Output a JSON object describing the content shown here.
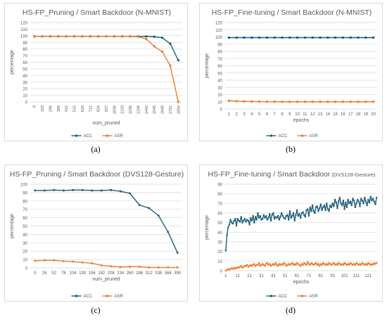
{
  "colors": {
    "acc": "#1f5d7a",
    "asr": "#ed7d31",
    "grid": "#d9d9d9",
    "text": "#595959"
  },
  "panels": [
    {
      "id": "a",
      "caption": "(a)",
      "chart_data": {
        "type": "line",
        "title": "HS-FP_Pruning / Smart Backdoor (N-MNIST)",
        "xlabel": "num_pruned",
        "ylabel": "percentage",
        "ylim": [
          0,
          120
        ],
        "yticks": [
          0,
          10,
          20,
          30,
          40,
          50,
          60,
          70,
          80,
          90,
          100,
          110,
          120
        ],
        "categories": [
          "0",
          "103",
          "206",
          "309",
          "412",
          "515",
          "618",
          "721",
          "824",
          "927",
          "1030",
          "1133",
          "1236",
          "1339",
          "1442",
          "1545",
          "1648",
          "1751",
          "1854"
        ],
        "series": [
          {
            "name": "ACC",
            "values": [
              99,
              99,
              99,
              99,
              99,
              99,
              99,
              99,
              99,
              99,
              99,
              99,
              99,
              99,
              99,
              98.5,
              97,
              88,
              63
            ]
          },
          {
            "name": "ASR",
            "values": [
              99,
              99,
              99,
              99,
              99,
              99,
              99,
              99,
              99,
              99,
              99,
              99,
              99,
              98.5,
              95,
              84,
              76,
              55,
              0
            ]
          }
        ],
        "legend": "bottom",
        "grid": true
      }
    },
    {
      "id": "b",
      "caption": "(b)",
      "chart_data": {
        "type": "line",
        "title": "HS-FP_Fine-tuning / Smart Backdoor (N-MNIST)",
        "xlabel": "epochs",
        "ylabel": "percentage",
        "ylim": [
          0,
          120
        ],
        "yticks": [
          0,
          10,
          20,
          30,
          40,
          50,
          60,
          70,
          80,
          90,
          100,
          110,
          120
        ],
        "categories": [
          "1",
          "2",
          "3",
          "4",
          "5",
          "6",
          "7",
          "8",
          "9",
          "10",
          "11",
          "12",
          "13",
          "14",
          "15",
          "16",
          "17",
          "18",
          "19",
          "20"
        ],
        "series": [
          {
            "name": "ACC",
            "values": [
              99,
              99,
              99,
              99,
              99,
              99,
              99,
              99,
              99,
              99,
              99,
              99,
              99,
              99,
              99,
              99,
              99,
              99,
              99,
              99
            ]
          },
          {
            "name": "ASR",
            "values": [
              11.5,
              10.8,
              10.5,
              10.3,
              10.2,
              10.1,
              10.1,
              10,
              10,
              10,
              10,
              10,
              10,
              10,
              10,
              10,
              10,
              10,
              10,
              10
            ]
          }
        ],
        "legend": "bottom",
        "grid": true
      }
    },
    {
      "id": "c",
      "caption": "(c)",
      "chart_data": {
        "type": "line",
        "title": "HS-FP_Pruning / Smart Backdoor (DVS128-Gesture)",
        "xlabel": "num_pruned",
        "ylabel": "percentage",
        "ylim": [
          0,
          100
        ],
        "yticks": [
          0,
          10,
          20,
          30,
          40,
          50,
          60,
          70,
          80,
          90,
          100
        ],
        "categories": [
          "0",
          "26",
          "52",
          "78",
          "104",
          "130",
          "156",
          "182",
          "208",
          "234",
          "260",
          "286",
          "312",
          "338",
          "364",
          "390"
        ],
        "series": [
          {
            "name": "ACC",
            "values": [
              92.5,
              92.5,
              93,
              92.5,
              93,
              93,
              92.5,
              92.5,
              93,
              91.5,
              89,
              75,
              71.5,
              62.5,
              43,
              18
            ]
          },
          {
            "name": "ASR",
            "values": [
              8.5,
              9,
              9,
              8,
              7.5,
              6.5,
              5.5,
              3,
              2,
              1,
              1.5,
              1.5,
              0.5,
              0.5,
              0.5,
              0.5
            ]
          }
        ],
        "legend": "bottom",
        "grid": true
      }
    },
    {
      "id": "d",
      "caption": "(d)",
      "chart_data": {
        "type": "line",
        "title": "HS-FP_Fine-tuning / Smart Backdoor",
        "title_suffix": "(DVS128-Gesture)",
        "xlabel": "epochs",
        "ylabel": "percentage",
        "ylim": [
          0,
          90
        ],
        "yticks": [
          0,
          10,
          20,
          30,
          40,
          50,
          60,
          70,
          80,
          90
        ],
        "xticks": [
          "1",
          "11",
          "21",
          "31",
          "41",
          "51",
          "61",
          "71",
          "81",
          "91",
          "101",
          "111",
          "121"
        ],
        "x_count": 128,
        "series": [
          {
            "name": "ACC",
            "values": [
              21,
              37,
              45,
              48,
              53,
              50,
              49,
              52,
              54,
              47,
              54,
              52,
              51,
              56,
              50,
              52,
              54,
              51,
              53,
              52,
              48,
              55,
              52,
              57,
              50,
              56,
              53,
              60,
              55,
              57,
              53,
              54,
              58,
              55,
              57,
              53,
              55,
              59,
              52,
              58,
              60,
              54,
              56,
              55,
              57,
              53,
              56,
              60,
              57,
              55,
              54,
              57,
              58,
              53,
              62,
              55,
              57,
              60,
              52,
              58,
              63,
              57,
              59,
              55,
              60,
              61,
              58,
              56,
              63,
              64,
              57,
              66,
              62,
              68,
              62,
              60,
              66,
              67,
              62,
              65,
              69,
              63,
              66,
              68,
              63,
              70,
              64,
              62,
              68,
              66,
              70,
              67,
              74,
              71,
              65,
              72,
              76,
              70,
              68,
              73,
              64,
              71,
              66,
              74,
              70,
              72,
              68,
              75,
              73,
              66,
              70,
              74,
              72,
              67,
              75,
              73,
              70,
              76,
              72,
              68,
              74,
              71,
              77,
              73,
              75,
              72,
              69,
              76
            ]
          },
          {
            "name": "ASR",
            "values": [
              0,
              1,
              1.5,
              1,
              2,
              2.5,
              2,
              3,
              2,
              3,
              3.5,
              3,
              4,
              5,
              3,
              4,
              5,
              5,
              6,
              4,
              5,
              6,
              5,
              6,
              7,
              5,
              6,
              6,
              8,
              5,
              6,
              7,
              6,
              5,
              7,
              8,
              6,
              7,
              5,
              6,
              7,
              6,
              8,
              6,
              5,
              7,
              6,
              7,
              6,
              8,
              7,
              5,
              6,
              7,
              6,
              7,
              8,
              6,
              7,
              6,
              8,
              7,
              6,
              5,
              7,
              6,
              8,
              7,
              6,
              9,
              7,
              6,
              8,
              7,
              6,
              7,
              8,
              6,
              7,
              5,
              7,
              6,
              8,
              7,
              6,
              7,
              6,
              8,
              7,
              6,
              7,
              8,
              6,
              7,
              6,
              8,
              7,
              6,
              7,
              6,
              8,
              7,
              6,
              7,
              6,
              8,
              7,
              6,
              7,
              6,
              8,
              7,
              6,
              7,
              6,
              8,
              7,
              6,
              7,
              6,
              8,
              7,
              6,
              7,
              6,
              8,
              7,
              8
            ]
          }
        ],
        "legend": "bottom",
        "grid": true
      }
    }
  ]
}
